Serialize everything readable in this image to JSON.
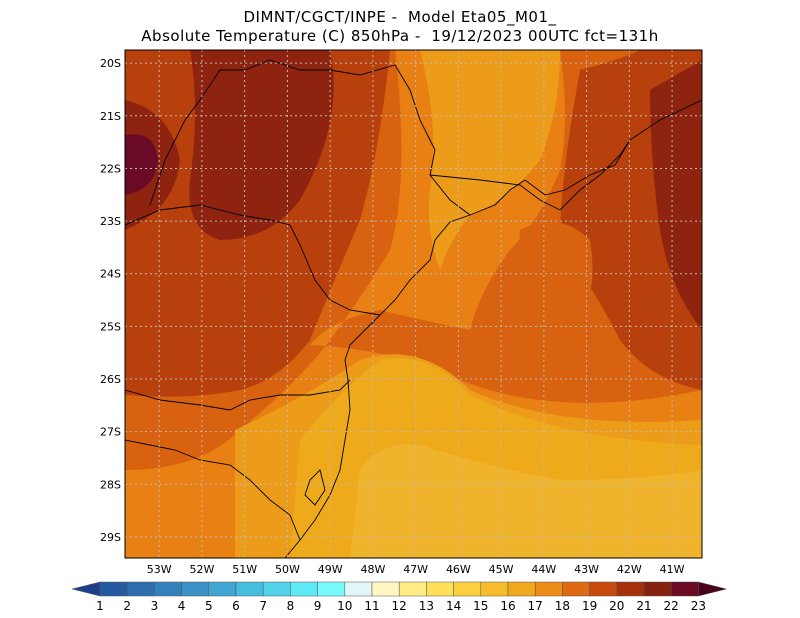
{
  "title": {
    "line1": "DIMNT/CGCT/INPE -  Model Eta05_M01_",
    "line2": "Absolute Temperature (C) 850hPa -  19/12/2023 00UTC fct=131h"
  },
  "map": {
    "lat_labels": [
      "20S",
      "21S",
      "22S",
      "23S",
      "24S",
      "25S",
      "26S",
      "27S",
      "28S",
      "29S"
    ],
    "lon_labels": [
      "53W",
      "52W",
      "51W",
      "50W",
      "49W",
      "48W",
      "47W",
      "46W",
      "45W",
      "44W",
      "43W",
      "42W",
      "41W"
    ],
    "lon_range": [
      -53.8,
      -40.3
    ],
    "lat_range": [
      -29.4,
      -19.75
    ]
  },
  "colorbar": {
    "labels": [
      "1",
      "2",
      "3",
      "4",
      "5",
      "6",
      "7",
      "8",
      "9",
      "10",
      "11",
      "12",
      "13",
      "14",
      "15",
      "16",
      "17",
      "18",
      "19",
      "20",
      "21",
      "22",
      "23"
    ],
    "colors": [
      "#1c3f8c",
      "#265aa0",
      "#2f6fae",
      "#3581bb",
      "#3a92c6",
      "#3fa5d2",
      "#46bcde",
      "#50d2ea",
      "#5fe8f5",
      "#78fbff",
      "#dff7f7",
      "#fff6c2",
      "#ffec82",
      "#ffe05a",
      "#fbcf3e",
      "#f6bc2a",
      "#f2a81c",
      "#ec8d17",
      "#de6a12",
      "#c84a0e",
      "#a6300c",
      "#86200f",
      "#6a0a23",
      "#4a0018"
    ]
  },
  "field_colors": {
    "t15": "#f0b42c",
    "t16": "#eeaa1a",
    "t17": "#ec9c18",
    "t18": "#e88014",
    "t19": "#d8620f",
    "t20": "#b8400c",
    "t21": "#8e2410",
    "t22": "#6b0a26"
  }
}
